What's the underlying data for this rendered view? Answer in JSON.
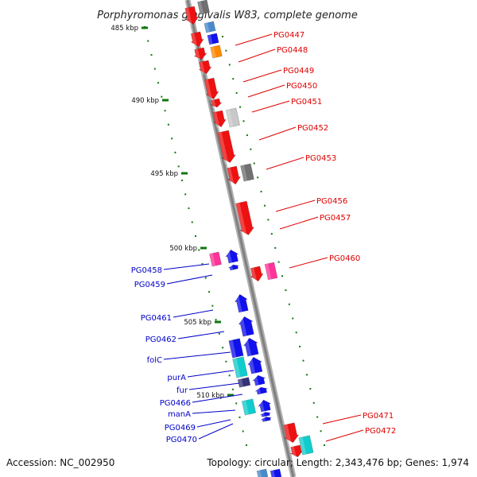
{
  "title": "Porphyromonas gingivalis W83, complete genome",
  "footer": {
    "accession": "Accession: NC_002950",
    "topology": "Topology: circular; Length: 2,343,476 bp; Genes: 1,974"
  },
  "colors": {
    "red": "#ee1111",
    "blue": "#1111ee",
    "pink": "#ff3399",
    "cyan": "#11cccc",
    "orange": "#ff8800",
    "lightgray": "#c8c8c8",
    "darkgray": "#707070",
    "navy": "#333377",
    "steelblue": "#4a8acc",
    "backbone": "#8a8a8a",
    "tick": "#117711",
    "label_red": "#e00000",
    "label_blue": "#0000c8"
  },
  "scale_labels": [
    "485 kbp",
    "490 kbp",
    "495 kbp",
    "500 kbp",
    "505 kbp",
    "510 kbp"
  ],
  "right_labels": [
    "PG0447",
    "PG0448",
    "PG0449",
    "PG0450",
    "PG0451",
    "PG0452",
    "PG0453",
    "PG0456",
    "PG0457",
    "PG0460",
    "PG0471",
    "PG0472"
  ],
  "left_labels": [
    "PG0458",
    "PG0459",
    "PG0461",
    "PG0462",
    "folC",
    "purA",
    "fur",
    "PG0466",
    "manA",
    "PG0469",
    "PG0470"
  ]
}
